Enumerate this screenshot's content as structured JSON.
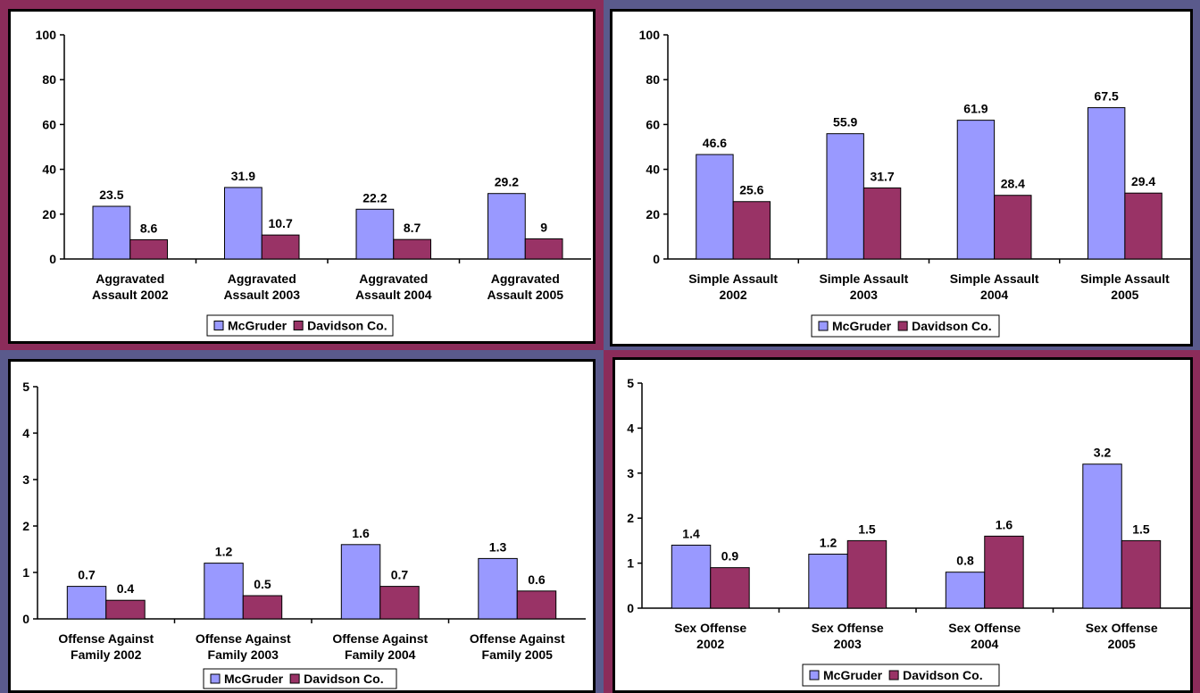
{
  "colors": {
    "frame_maroon": "#8b2c5a",
    "frame_slate": "#5a5a8c",
    "mcgruder": "#9999ff",
    "davidson": "#993366"
  },
  "chart_data": [
    {
      "type": "bar",
      "categories": [
        "Aggravated Assault 2002",
        "Aggravated Assault 2003",
        "Aggravated Assault 2004",
        "Aggravated Assault 2005"
      ],
      "category_lines": [
        [
          "Aggravated",
          "Assault 2002"
        ],
        [
          "Aggravated",
          "Assault 2003"
        ],
        [
          "Aggravated",
          "Assault 2004"
        ],
        [
          "Aggravated",
          "Assault 2005"
        ]
      ],
      "series": [
        {
          "name": "McGruder",
          "values": [
            23.5,
            31.9,
            22.2,
            29.2
          ]
        },
        {
          "name": "Davidson Co.",
          "values": [
            8.6,
            10.7,
            8.7,
            9
          ]
        }
      ],
      "ylim": [
        0,
        100
      ],
      "yticks": [
        0,
        20,
        40,
        60,
        80,
        100
      ],
      "legend": "bottom"
    },
    {
      "type": "bar",
      "categories": [
        "Simple Assault 2002",
        "Simple Assault 2003",
        "Simple Assault 2004",
        "Simple Assault 2005"
      ],
      "category_lines": [
        [
          "Simple Assault",
          "2002"
        ],
        [
          "Simple Assault",
          "2003"
        ],
        [
          "Simple Assault",
          "2004"
        ],
        [
          "Simple Assault",
          "2005"
        ]
      ],
      "series": [
        {
          "name": "McGruder",
          "values": [
            46.6,
            55.9,
            61.9,
            67.5
          ]
        },
        {
          "name": "Davidson Co.",
          "values": [
            25.6,
            31.7,
            28.4,
            29.4
          ]
        }
      ],
      "ylim": [
        0,
        100
      ],
      "yticks": [
        0,
        20,
        40,
        60,
        80,
        100
      ],
      "legend": "bottom"
    },
    {
      "type": "bar",
      "categories": [
        "Offense Against Family 2002",
        "Offense Against Family 2003",
        "Offense Against Family 2004",
        "Offense Against Family 2005"
      ],
      "category_lines": [
        [
          "Offense Against",
          "Family 2002"
        ],
        [
          "Offense Against",
          "Family 2003"
        ],
        [
          "Offense Against",
          "Family 2004"
        ],
        [
          "Offense Against",
          "Family 2005"
        ]
      ],
      "series": [
        {
          "name": "McGruder",
          "values": [
            0.7,
            1.2,
            1.6,
            1.3
          ]
        },
        {
          "name": "Davidson Co.",
          "values": [
            0.4,
            0.5,
            0.7,
            0.6
          ]
        }
      ],
      "ylim": [
        0,
        5
      ],
      "yticks": [
        0,
        1,
        2,
        3,
        4,
        5
      ],
      "legend": "bottom"
    },
    {
      "type": "bar",
      "categories": [
        "Sex Offense 2002",
        "Sex Offense 2003",
        "Sex Offense 2004",
        "Sex Offense 2005"
      ],
      "category_lines": [
        [
          "Sex Offense",
          "2002"
        ],
        [
          "Sex Offense",
          "2003"
        ],
        [
          "Sex Offense",
          "2004"
        ],
        [
          "Sex Offense",
          "2005"
        ]
      ],
      "series": [
        {
          "name": "McGruder",
          "values": [
            1.4,
            1.2,
            0.8,
            3.2
          ]
        },
        {
          "name": "Davidson Co.",
          "values": [
            0.9,
            1.5,
            1.6,
            1.5
          ]
        }
      ],
      "ylim": [
        0,
        5
      ],
      "yticks": [
        0,
        1,
        2,
        3,
        4,
        5
      ],
      "legend": "bottom"
    }
  ]
}
